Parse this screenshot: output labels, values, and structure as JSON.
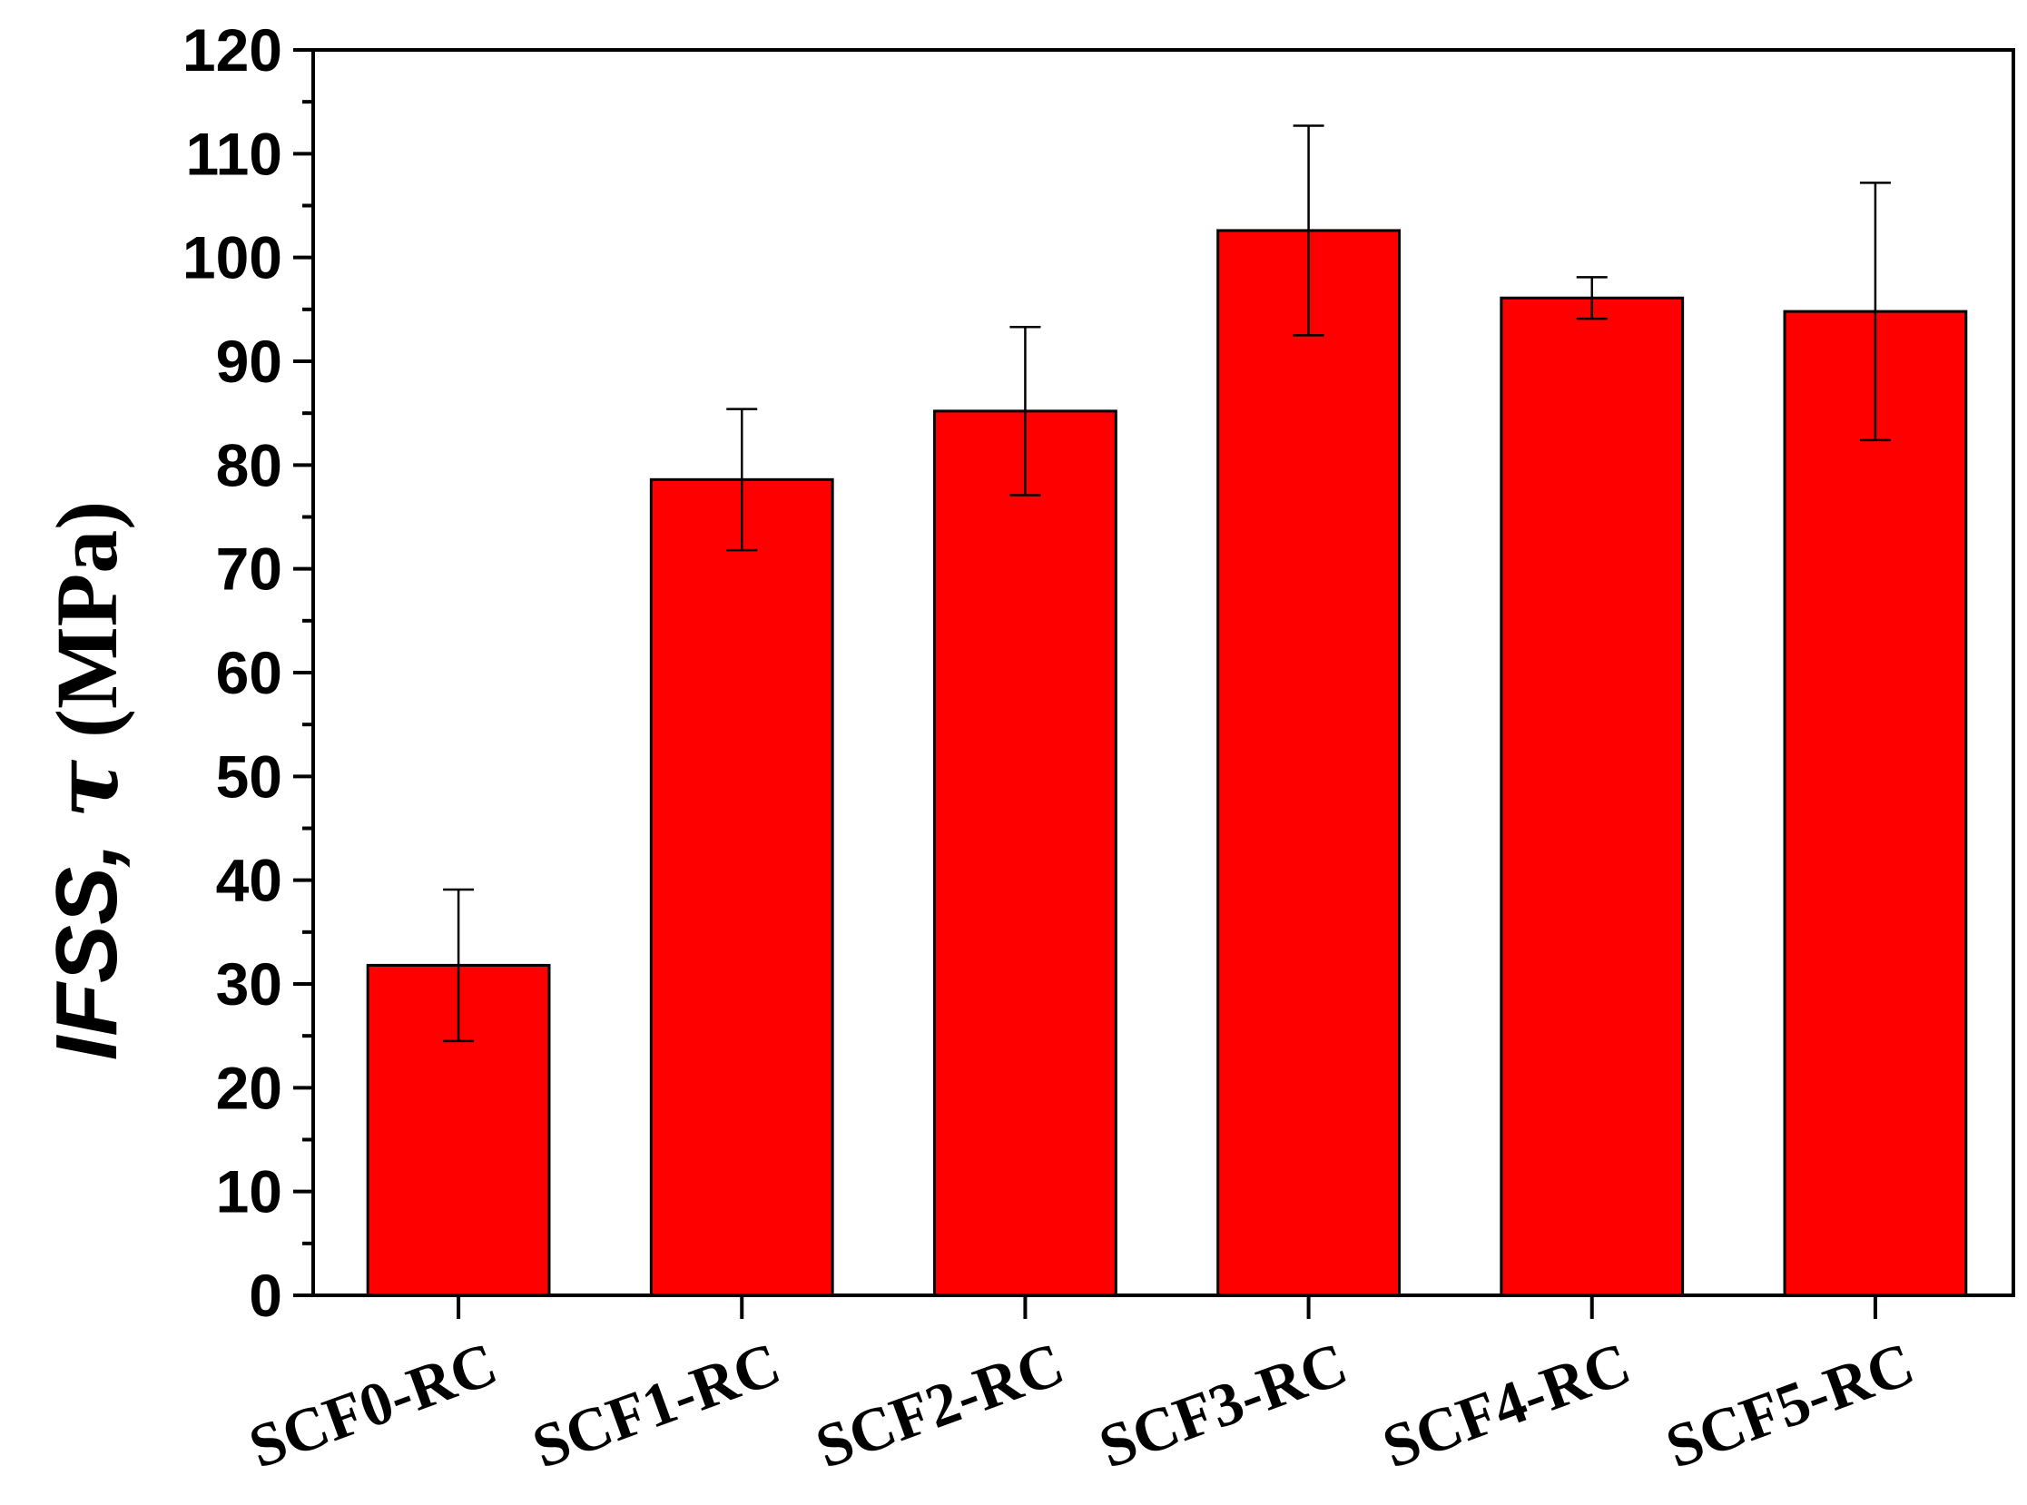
{
  "chart_data": {
    "type": "bar",
    "categories": [
      "SCF0-RC",
      "SCF1-RC",
      "SCF2-RC",
      "SCF3-RC",
      "SCF4-RC",
      "SCF5-RC"
    ],
    "series": [
      {
        "values": [
          31.8,
          78.6,
          85.2,
          102.6,
          96.1,
          94.8
        ],
        "error": [
          7.3,
          6.8,
          8.1,
          10.1,
          2.0,
          12.4
        ],
        "color": "#ff0000"
      }
    ],
    "ylabel": {
      "italic": "IFSS",
      "separator": ", ",
      "symbol": "τ",
      "unit": " (MPa)"
    },
    "ylim": [
      0,
      120
    ],
    "yticks": [
      0,
      10,
      20,
      30,
      40,
      50,
      60,
      70,
      80,
      90,
      100,
      110,
      120
    ],
    "minor_step": 5,
    "grid": false,
    "legend": "none"
  }
}
